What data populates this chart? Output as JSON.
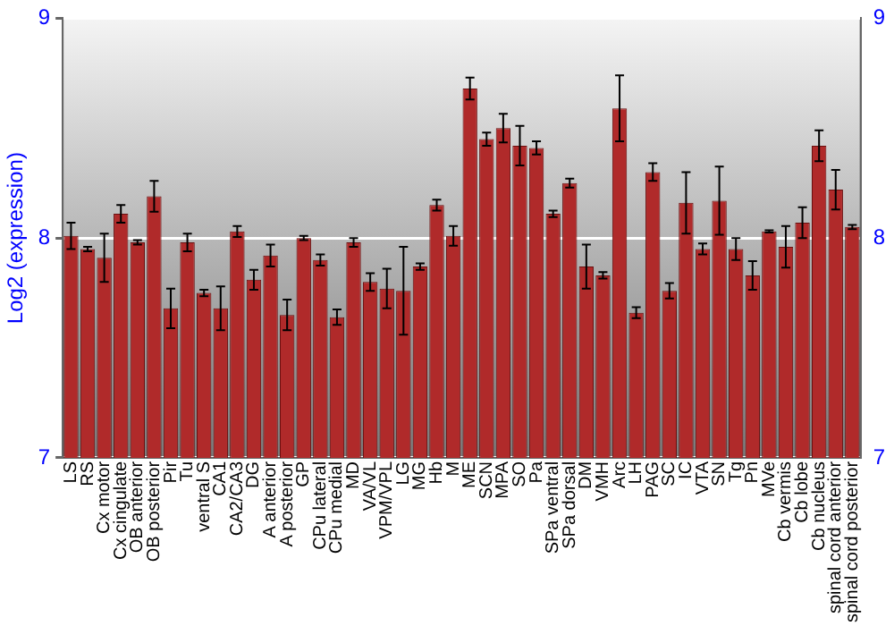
{
  "chart_data": {
    "type": "bar",
    "ylabel": "Log2 (expression)",
    "categories": [
      "LS",
      "RS",
      "Cx motor",
      "Cx cingulate",
      "OB anterior",
      "OB posterior",
      "Pir",
      "Tu",
      "ventral S",
      "CA1",
      "CA2/CA3",
      "DG",
      "A anterior",
      "A posterior",
      "GP",
      "CPu lateral",
      "CPu medial",
      "MD",
      "VA/VL",
      "VPM/VPL",
      "LG",
      "MG",
      "Hb",
      "M",
      "ME",
      "SCN",
      "MPA",
      "SO",
      "Pa",
      "SPa ventral",
      "SPa dorsal",
      "DM",
      "VMH",
      "Arc",
      "LH",
      "PAG",
      "SC",
      "IC",
      "VTA",
      "SN",
      "Tg",
      "Pn",
      "MVe",
      "Cb vermis",
      "Cb lobe",
      "Cb nucleus",
      "spinal cord anterior",
      "spinal cord posterior"
    ],
    "values": [
      8.01,
      7.95,
      7.91,
      8.11,
      7.98,
      8.19,
      7.68,
      7.98,
      7.75,
      7.68,
      8.03,
      7.81,
      7.92,
      7.65,
      8.0,
      7.9,
      7.64,
      7.98,
      7.8,
      7.77,
      7.76,
      7.87,
      8.15,
      8.01,
      8.68,
      8.45,
      8.5,
      8.42,
      8.41,
      8.11,
      8.25,
      7.87,
      7.83,
      8.59,
      7.66,
      8.3,
      7.76,
      8.16,
      7.95,
      8.17,
      7.95,
      7.83,
      8.03,
      7.96,
      8.07,
      8.42,
      8.22,
      8.05
    ],
    "errors": [
      0.06,
      0.01,
      0.11,
      0.04,
      0.01,
      0.07,
      0.09,
      0.04,
      0.015,
      0.1,
      0.025,
      0.045,
      0.05,
      0.07,
      0.01,
      0.025,
      0.035,
      0.02,
      0.04,
      0.09,
      0.2,
      0.015,
      0.025,
      0.045,
      0.05,
      0.03,
      0.065,
      0.09,
      0.03,
      0.015,
      0.02,
      0.1,
      0.015,
      0.15,
      0.025,
      0.04,
      0.035,
      0.14,
      0.025,
      0.155,
      0.05,
      0.065,
      0.005,
      0.095,
      0.07,
      0.07,
      0.09,
      0.01
    ],
    "color": "#b02a2a",
    "ylim": [
      7,
      9
    ],
    "yticks": [
      7,
      8,
      9
    ],
    "y2lim": [
      7,
      9
    ],
    "y2ticks": [
      7,
      8,
      9
    ],
    "grid": "y",
    "legend": false
  }
}
